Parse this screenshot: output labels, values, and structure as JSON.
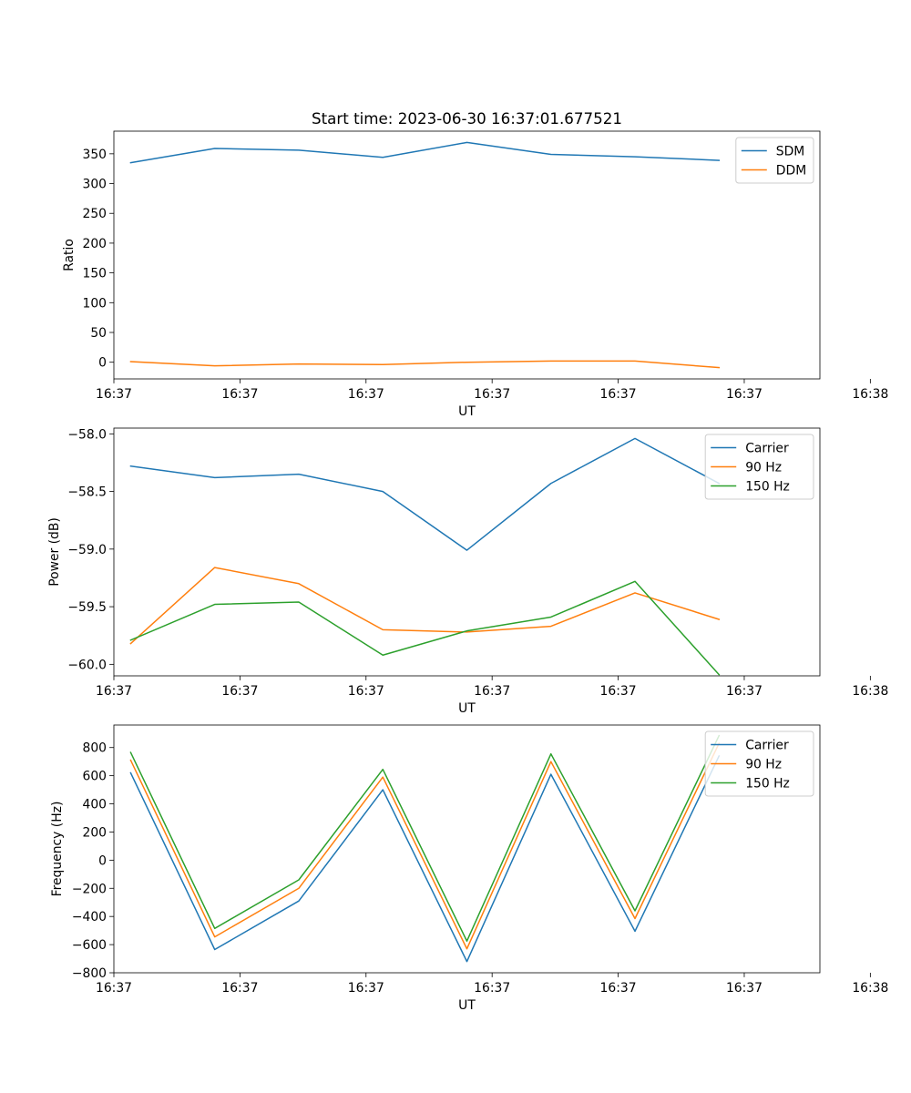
{
  "title": "Start time: 2023-06-30 16:37:01.677521",
  "chart_data": [
    {
      "type": "line",
      "title": "Start time: 2023-06-30 16:37:01.677521",
      "xlabel": "UT",
      "ylabel": "Ratio",
      "x": [
        1,
        2,
        3,
        4,
        5,
        6,
        7,
        8
      ],
      "xlim": [
        0.8,
        9.2
      ],
      "xticks": [
        0.8,
        2.3,
        3.8,
        5.3,
        6.8,
        8.3,
        9.8
      ],
      "xtick_labels": [
        "16:37",
        "16:37",
        "16:37",
        "16:37",
        "16:37",
        "16:37",
        "16:38"
      ],
      "ylim": [
        -28,
        388
      ],
      "yticks": [
        0,
        50,
        100,
        150,
        200,
        250,
        300,
        350
      ],
      "ytick_labels": [
        "0",
        "50",
        "100",
        "150",
        "200",
        "250",
        "300",
        "350"
      ],
      "legend": "top-right",
      "grid": false,
      "series": [
        {
          "name": "SDM",
          "color": "#1f77b4",
          "values": [
            335,
            359,
            356,
            344,
            369,
            349,
            345,
            339
          ]
        },
        {
          "name": "DDM",
          "color": "#ff7f0e",
          "values": [
            1,
            -6,
            -3,
            -4,
            0,
            2,
            2,
            -9
          ]
        }
      ]
    },
    {
      "type": "line",
      "xlabel": "UT",
      "ylabel": "Power (dB)",
      "x": [
        1,
        2,
        3,
        4,
        5,
        6,
        7,
        8
      ],
      "xlim": [
        0.8,
        9.2
      ],
      "xticks": [
        0.8,
        2.3,
        3.8,
        5.3,
        6.8,
        8.3,
        9.8
      ],
      "xtick_labels": [
        "16:37",
        "16:37",
        "16:37",
        "16:37",
        "16:37",
        "16:37",
        "16:38"
      ],
      "ylim": [
        -60.1,
        -57.95
      ],
      "yticks": [
        -60.0,
        -59.5,
        -59.0,
        -58.5,
        -58.0
      ],
      "ytick_labels": [
        "−60.0",
        "−59.5",
        "−59.0",
        "−58.5",
        "−58.0"
      ],
      "legend": "top-right",
      "grid": false,
      "series": [
        {
          "name": "Carrier",
          "color": "#1f77b4",
          "values": [
            -58.28,
            -58.38,
            -58.35,
            -58.5,
            -59.01,
            -58.43,
            -58.04,
            -58.43
          ]
        },
        {
          "name": "90 Hz",
          "color": "#ff7f0e",
          "values": [
            -59.82,
            -59.16,
            -59.3,
            -59.7,
            -59.72,
            -59.67,
            -59.38,
            -59.61
          ]
        },
        {
          "name": "150 Hz",
          "color": "#2ca02c",
          "values": [
            -59.79,
            -59.48,
            -59.46,
            -59.92,
            -59.71,
            -59.59,
            -59.28,
            -60.09
          ]
        }
      ]
    },
    {
      "type": "line",
      "xlabel": "UT",
      "ylabel": "Frequency (Hz)",
      "x": [
        1,
        2,
        3,
        4,
        5,
        6,
        7,
        8
      ],
      "xlim": [
        0.8,
        9.2
      ],
      "xticks": [
        0.8,
        2.3,
        3.8,
        5.3,
        6.8,
        8.3,
        9.8
      ],
      "xtick_labels": [
        "16:37",
        "16:37",
        "16:37",
        "16:37",
        "16:37",
        "16:37",
        "16:38"
      ],
      "ylim": [
        -800,
        960
      ],
      "yticks": [
        -800,
        -600,
        -400,
        -200,
        0,
        200,
        400,
        600,
        800
      ],
      "ytick_labels": [
        "−800",
        "−600",
        "−400",
        "−200",
        "0",
        "200",
        "400",
        "600",
        "800"
      ],
      "legend": "top-right",
      "grid": false,
      "series": [
        {
          "name": "Carrier",
          "color": "#1f77b4",
          "values": [
            620,
            -635,
            -290,
            500,
            -720,
            610,
            -505,
            740
          ]
        },
        {
          "name": "90 Hz",
          "color": "#ff7f0e",
          "values": [
            710,
            -545,
            -200,
            590,
            -630,
            700,
            -415,
            830
          ]
        },
        {
          "name": "150 Hz",
          "color": "#2ca02c",
          "values": [
            765,
            -485,
            -140,
            645,
            -575,
            755,
            -360,
            885
          ]
        }
      ]
    }
  ]
}
